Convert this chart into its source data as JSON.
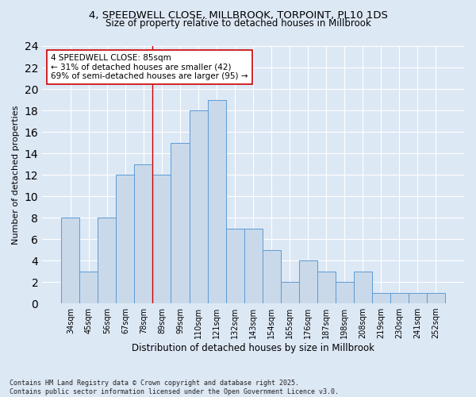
{
  "title": "4, SPEEDWELL CLOSE, MILLBROOK, TORPOINT, PL10 1DS",
  "subtitle": "Size of property relative to detached houses in Millbrook",
  "xlabel": "Distribution of detached houses by size in Millbrook",
  "ylabel": "Number of detached properties",
  "footer": "Contains HM Land Registry data © Crown copyright and database right 2025.\nContains public sector information licensed under the Open Government Licence v3.0.",
  "categories": [
    "34sqm",
    "45sqm",
    "56sqm",
    "67sqm",
    "78sqm",
    "89sqm",
    "99sqm",
    "110sqm",
    "121sqm",
    "132sqm",
    "143sqm",
    "154sqm",
    "165sqm",
    "176sqm",
    "187sqm",
    "198sqm",
    "208sqm",
    "219sqm",
    "230sqm",
    "241sqm",
    "252sqm"
  ],
  "values": [
    8,
    3,
    8,
    12,
    13,
    12,
    15,
    18,
    19,
    7,
    7,
    5,
    2,
    4,
    3,
    2,
    3,
    1,
    1,
    1,
    1
  ],
  "bar_color": "#c9d9ea",
  "bar_edge_color": "#5b9bd5",
  "background_color": "#dde8f5",
  "plot_bg_color": "#dde8f5",
  "grid_color": "#ffffff",
  "vline_color": "#cc0000",
  "vline_x_index": 5,
  "annotation_text": "4 SPEEDWELL CLOSE: 85sqm\n← 31% of detached houses are smaller (42)\n69% of semi-detached houses are larger (95) →",
  "annotation_box_edge": "#cc0000",
  "annotation_box_face": "#ffffff",
  "ylim": [
    0,
    24
  ],
  "yticks": [
    0,
    2,
    4,
    6,
    8,
    10,
    12,
    14,
    16,
    18,
    20,
    22,
    24
  ]
}
